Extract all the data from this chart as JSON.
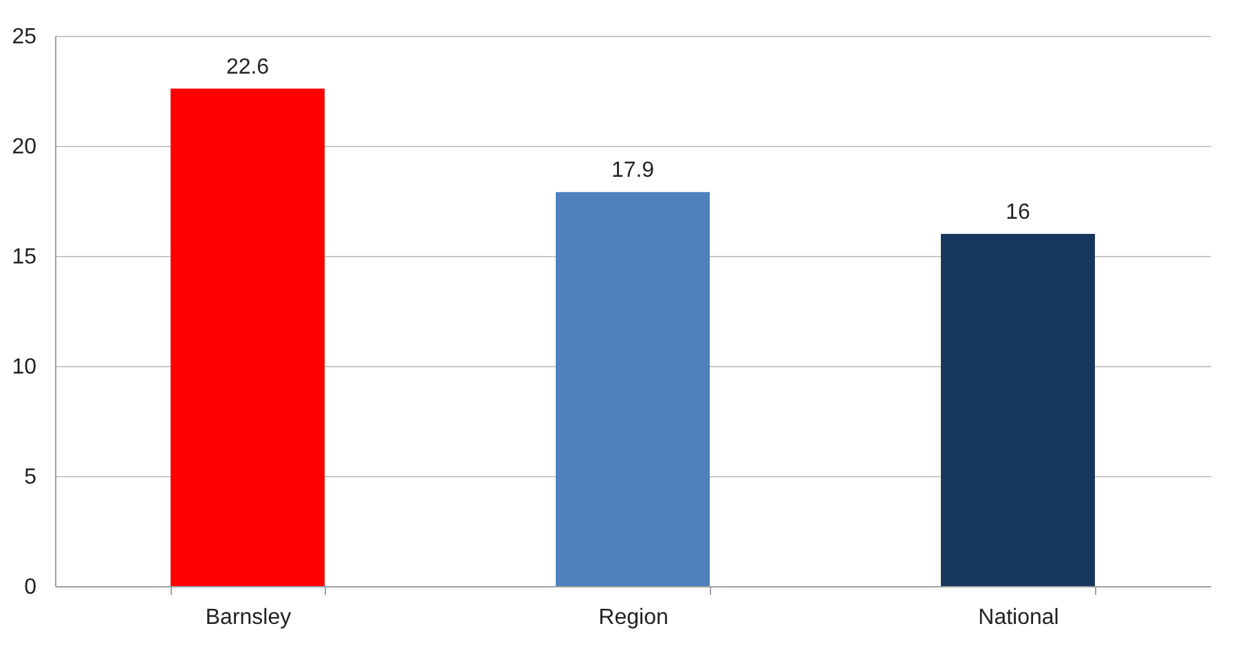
{
  "chart_data": {
    "type": "bar",
    "categories": [
      "Barnsley",
      "Region",
      "National"
    ],
    "values": [
      22.6,
      17.9,
      16
    ],
    "colors": [
      "#ff0000",
      "#4f81bd",
      "#17375e"
    ],
    "ylim": [
      0,
      25
    ],
    "yticks": [
      0,
      5,
      10,
      15,
      20,
      25
    ],
    "grid": "y",
    "data_labels": true
  }
}
